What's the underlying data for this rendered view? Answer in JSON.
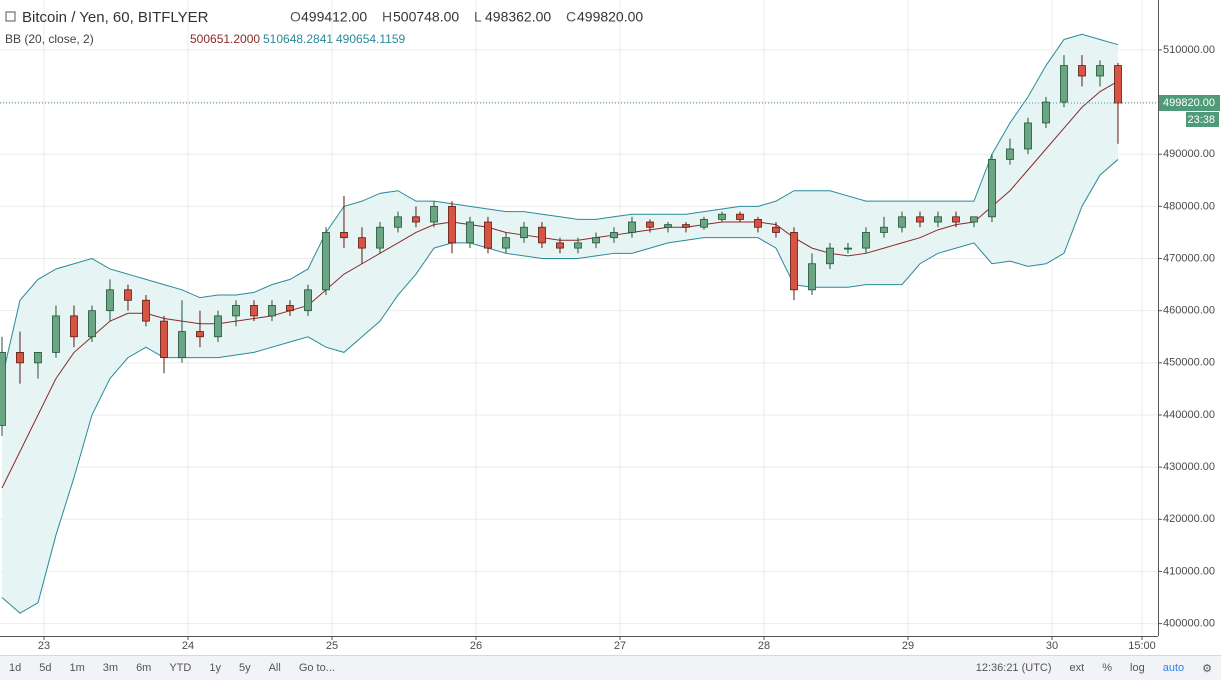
{
  "chart_data": {
    "type": "candlestick",
    "title": "Bitcoin / Yen, 60, BITFLYER",
    "ohlc": [
      {
        "key": "O",
        "value": "499412.00"
      },
      {
        "key": "H",
        "value": "500748.00"
      },
      {
        "key": "L",
        "value": "498362.00"
      },
      {
        "key": "C",
        "value": "499820.00"
      }
    ],
    "indicator": {
      "label": "BB (20, close, 2)",
      "values": [
        {
          "text": "500651.2000",
          "color": "#8b2a2a"
        },
        {
          "text": "510648.2841",
          "color": "#2a8a9a"
        },
        {
          "text": "490654.1159",
          "color": "#2a8a9a"
        }
      ]
    },
    "x": [
      -7,
      -4,
      -1,
      2,
      5,
      8,
      11,
      14,
      17,
      20,
      23,
      26,
      29,
      32,
      35,
      38,
      41,
      44,
      47,
      50,
      53,
      56,
      59,
      62,
      65,
      68,
      71,
      74,
      77,
      80,
      83,
      86,
      89,
      92,
      95,
      98,
      101,
      104,
      107,
      110,
      113,
      116,
      119,
      122,
      125,
      128,
      131,
      134,
      137,
      140,
      143,
      146,
      149,
      152,
      155,
      158,
      161,
      164,
      167,
      170,
      173,
      176,
      179
    ],
    "candles": [
      [
        438000,
        455000,
        436000,
        452000
      ],
      [
        452000,
        456000,
        446000,
        450000
      ],
      [
        450000,
        452000,
        447000,
        452000
      ],
      [
        452000,
        461000,
        451000,
        459000
      ],
      [
        459000,
        461000,
        453000,
        455000
      ],
      [
        455000,
        461000,
        454000,
        460000
      ],
      [
        460000,
        466000,
        458000,
        464000
      ],
      [
        464000,
        465000,
        460000,
        462000
      ],
      [
        462000,
        463000,
        457000,
        458000
      ],
      [
        458000,
        459000,
        448000,
        451000
      ],
      [
        451000,
        462000,
        450000,
        456000
      ],
      [
        456000,
        460000,
        453000,
        455000
      ],
      [
        455000,
        460000,
        454000,
        459000
      ],
      [
        459000,
        462000,
        457000,
        461000
      ],
      [
        461000,
        462000,
        458000,
        459000
      ],
      [
        459000,
        462000,
        458000,
        461000
      ],
      [
        461000,
        462000,
        459000,
        460000
      ],
      [
        460000,
        465000,
        459000,
        464000
      ],
      [
        464000,
        476000,
        463000,
        475000
      ],
      [
        475000,
        482000,
        472000,
        474000
      ],
      [
        474000,
        476000,
        469000,
        472000
      ],
      [
        472000,
        477000,
        471000,
        476000
      ],
      [
        476000,
        479000,
        475000,
        478000
      ],
      [
        478000,
        480000,
        476000,
        477000
      ],
      [
        477000,
        481000,
        476000,
        480000
      ],
      [
        480000,
        481000,
        471000,
        473000
      ],
      [
        473000,
        478000,
        472000,
        477000
      ],
      [
        477000,
        478000,
        471000,
        472000
      ],
      [
        472000,
        475000,
        471000,
        474000
      ],
      [
        474000,
        477000,
        473000,
        476000
      ],
      [
        476000,
        477000,
        472000,
        473000
      ],
      [
        473000,
        474000,
        471000,
        472000
      ],
      [
        472000,
        474000,
        471000,
        473000
      ],
      [
        473000,
        475000,
        472000,
        474000
      ],
      [
        474000,
        476000,
        473000,
        475000
      ],
      [
        475000,
        478000,
        474000,
        477000
      ],
      [
        477000,
        477500,
        475000,
        476000
      ],
      [
        476000,
        477000,
        475000,
        476500
      ],
      [
        476500,
        477000,
        475000,
        476000
      ],
      [
        476000,
        478000,
        475500,
        477500
      ],
      [
        477500,
        479000,
        477000,
        478500
      ],
      [
        478500,
        479000,
        477000,
        477500
      ],
      [
        477500,
        478000,
        475000,
        476000
      ],
      [
        476000,
        477000,
        474000,
        475000
      ],
      [
        475000,
        476000,
        462000,
        464000
      ],
      [
        464000,
        471000,
        463000,
        469000
      ],
      [
        469000,
        473000,
        468000,
        472000
      ],
      [
        472000,
        473000,
        471000,
        472000
      ],
      [
        472000,
        476000,
        471000,
        475000
      ],
      [
        475000,
        478000,
        474000,
        476000
      ],
      [
        476000,
        479000,
        475000,
        478000
      ],
      [
        478000,
        479000,
        476000,
        477000
      ],
      [
        477000,
        479000,
        476000,
        478000
      ],
      [
        478000,
        479000,
        476000,
        477000
      ],
      [
        477000,
        478000,
        476000,
        478000
      ],
      [
        478000,
        490000,
        477000,
        489000
      ],
      [
        489000,
        493000,
        488000,
        491000
      ],
      [
        491000,
        497000,
        490000,
        496000
      ],
      [
        496000,
        501000,
        495000,
        500000
      ],
      [
        500000,
        509000,
        499000,
        507000
      ],
      [
        507000,
        509000,
        503000,
        505000
      ],
      [
        505000,
        508000,
        503000,
        507000
      ],
      [
        507000,
        507500,
        492000,
        499820
      ]
    ],
    "up_color": "#6ba583",
    "down_color": "#d75442",
    "bands": {
      "fill": "#e6f4f4",
      "upper": {
        "color": "#2a8a9a",
        "values": [
          447000,
          462000,
          466000,
          468000,
          469000,
          470000,
          468000,
          467000,
          466000,
          465000,
          464000,
          462500,
          463000,
          463000,
          463500,
          465000,
          466000,
          468000,
          475000,
          480000,
          481000,
          482500,
          483000,
          481000,
          481000,
          480500,
          480000,
          479500,
          479000,
          479000,
          478500,
          478000,
          477500,
          477500,
          478000,
          478500,
          478500,
          478500,
          478500,
          479000,
          479500,
          480000,
          480000,
          481000,
          483000,
          483000,
          483000,
          482000,
          481000,
          481000,
          481000,
          481000,
          481000,
          481000,
          481000,
          490000,
          496000,
          501000,
          507000,
          512000,
          513000,
          512000,
          511000
        ]
      },
      "basis": {
        "color": "#8b2a2a",
        "values": [
          426000,
          433000,
          440000,
          447000,
          452000,
          455000,
          458000,
          459500,
          459500,
          458500,
          458000,
          457500,
          457500,
          458000,
          458500,
          459000,
          460000,
          461000,
          464000,
          467000,
          469000,
          471000,
          473000,
          475000,
          476500,
          477000,
          476500,
          476000,
          475000,
          474500,
          474000,
          473500,
          473500,
          474000,
          474500,
          475000,
          475500,
          476000,
          476000,
          476500,
          477000,
          477000,
          477000,
          476500,
          474000,
          472000,
          471000,
          470500,
          471000,
          472000,
          473000,
          474000,
          475500,
          476500,
          477000,
          480000,
          483000,
          487000,
          491000,
          495000,
          499000,
          502000,
          504000
        ]
      },
      "lower": {
        "color": "#2a8a9a",
        "values": [
          405000,
          402000,
          404000,
          417000,
          428000,
          440000,
          447000,
          451000,
          453000,
          451000,
          451000,
          451000,
          451000,
          451500,
          452000,
          453000,
          454000,
          455000,
          453000,
          452000,
          455000,
          458000,
          463000,
          467000,
          472000,
          473000,
          473000,
          472000,
          471000,
          470500,
          470000,
          470000,
          470000,
          470500,
          471000,
          471000,
          472000,
          473000,
          473500,
          474000,
          474000,
          474000,
          474000,
          472000,
          465000,
          464500,
          464500,
          464500,
          465000,
          465000,
          465000,
          469000,
          471000,
          472000,
          473000,
          469000,
          469500,
          468500,
          469000,
          471000,
          480000,
          486000,
          489000
        ]
      }
    },
    "xlim": [
      -7.33,
      185.67
    ],
    "xticks": [
      {
        "value": 0,
        "label": "23"
      },
      {
        "value": 24,
        "label": "24"
      },
      {
        "value": 48,
        "label": "25"
      },
      {
        "value": 72,
        "label": "26"
      },
      {
        "value": 96,
        "label": "27"
      },
      {
        "value": 120,
        "label": "28"
      },
      {
        "value": 144,
        "label": "29"
      },
      {
        "value": 168,
        "label": "30"
      },
      {
        "value": 183,
        "label": "15:00"
      }
    ],
    "ylim": [
      397625,
      519570
    ],
    "yticks": [
      {
        "value": 400000,
        "label": "400000.00"
      },
      {
        "value": 410000,
        "label": "410000.00"
      },
      {
        "value": 420000,
        "label": "420000.00"
      },
      {
        "value": 430000,
        "label": "430000.00"
      },
      {
        "value": 440000,
        "label": "440000.00"
      },
      {
        "value": 450000,
        "label": "450000.00"
      },
      {
        "value": 460000,
        "label": "460000.00"
      },
      {
        "value": 470000,
        "label": "470000.00"
      },
      {
        "value": 480000,
        "label": "480000.00"
      },
      {
        "value": 490000,
        "label": "490000.00"
      },
      {
        "value": 500000,
        "label": "500000.00"
      },
      {
        "value": 510000,
        "label": "510000.00"
      }
    ],
    "grid": true,
    "last_price": {
      "value": 499820,
      "label": "499820.00",
      "countdown": "23:38"
    }
  },
  "toolbar": {
    "ranges": [
      "1d",
      "5d",
      "1m",
      "3m",
      "6m",
      "YTD",
      "1y",
      "5y",
      "All",
      "Go to..."
    ],
    "clock": "12:36:21 (UTC)",
    "options": [
      "ext",
      "%",
      "log",
      "auto"
    ]
  }
}
